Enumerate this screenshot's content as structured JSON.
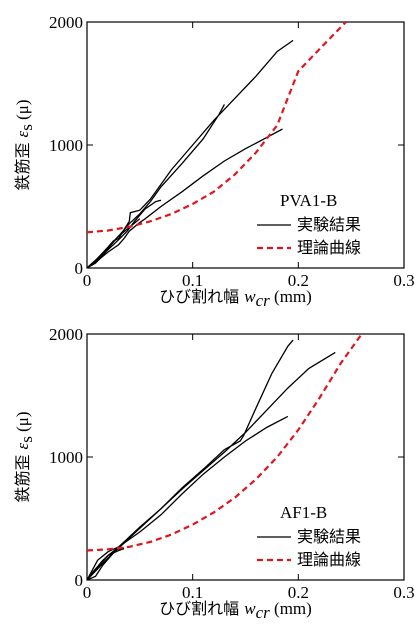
{
  "chart_data": [
    {
      "type": "line",
      "title": "PVA1-B",
      "xlabel": {
        "jp": "ひび割れ幅 ",
        "var": "w",
        "sub": "cr",
        "unit": " (mm)"
      },
      "ylabel": {
        "jp": "鉄筋歪 ",
        "var": "ε",
        "sub": "s",
        "unit": " (μ)"
      },
      "xlim": [
        0,
        0.3
      ],
      "ylim": [
        0,
        2000
      ],
      "xticks": [
        "0",
        "0.1",
        "0.2",
        "0.3"
      ],
      "yticks": [
        "0",
        "1000",
        "2000"
      ],
      "legend": {
        "placement": "bottom-right",
        "experimental": "実験結果",
        "theoretical": "理論曲線"
      },
      "colors": {
        "experimental": "#000000",
        "theoretical": "#e0161f"
      },
      "series": [
        {
          "role": "experimental",
          "values": [
            [
              0,
              0
            ],
            [
              0.005,
              40
            ],
            [
              0.01,
              70
            ],
            [
              0.018,
              150
            ],
            [
              0.025,
              220
            ],
            [
              0.03,
              240
            ],
            [
              0.035,
              310
            ],
            [
              0.04,
              380
            ],
            [
              0.041,
              450
            ],
            [
              0.05,
              470
            ],
            [
              0.06,
              560
            ],
            [
              0.08,
              800
            ],
            [
              0.1,
              1000
            ],
            [
              0.12,
              1200
            ],
            [
              0.14,
              1380
            ],
            [
              0.16,
              1560
            ],
            [
              0.18,
              1760
            ],
            [
              0.195,
              1850
            ]
          ]
        },
        {
          "role": "experimental",
          "values": [
            [
              0,
              0
            ],
            [
              0.01,
              80
            ],
            [
              0.02,
              170
            ],
            [
              0.03,
              260
            ],
            [
              0.04,
              360
            ],
            [
              0.05,
              440
            ],
            [
              0.06,
              540
            ],
            [
              0.07,
              660
            ],
            [
              0.09,
              850
            ],
            [
              0.11,
              1050
            ],
            [
              0.125,
              1250
            ],
            [
              0.13,
              1330
            ]
          ]
        },
        {
          "role": "experimental",
          "values": [
            [
              0,
              0
            ],
            [
              0.01,
              60
            ],
            [
              0.02,
              130
            ],
            [
              0.03,
              190
            ],
            [
              0.035,
              240
            ],
            [
              0.04,
              300
            ],
            [
              0.05,
              370
            ],
            [
              0.055,
              400
            ],
            [
              0.07,
              500
            ],
            [
              0.09,
              620
            ],
            [
              0.11,
              750
            ],
            [
              0.13,
              870
            ],
            [
              0.15,
              970
            ],
            [
              0.17,
              1060
            ],
            [
              0.185,
              1130
            ]
          ]
        },
        {
          "role": "experimental",
          "values": [
            [
              0,
              0
            ],
            [
              0.01,
              70
            ],
            [
              0.02,
              150
            ],
            [
              0.03,
              230
            ],
            [
              0.038,
              300
            ],
            [
              0.045,
              380
            ],
            [
              0.055,
              480
            ],
            [
              0.065,
              540
            ],
            [
              0.07,
              550
            ]
          ]
        },
        {
          "role": "experimental",
          "values": [
            [
              0,
              0
            ],
            [
              0.008,
              40
            ],
            [
              0.015,
              100
            ],
            [
              0.022,
              180
            ],
            [
              0.03,
              260
            ],
            [
              0.04,
              330
            ],
            [
              0.05,
              400
            ]
          ]
        },
        {
          "role": "theoretical",
          "values": [
            [
              0,
              290
            ],
            [
              0.02,
              305
            ],
            [
              0.04,
              335
            ],
            [
              0.06,
              380
            ],
            [
              0.08,
              440
            ],
            [
              0.1,
              520
            ],
            [
              0.12,
              620
            ],
            [
              0.14,
              760
            ],
            [
              0.16,
              940
            ],
            [
              0.18,
              1160
            ],
            [
              0.2,
              1600
            ],
            [
              0.22,
              1780
            ],
            [
              0.245,
              2000
            ]
          ]
        }
      ]
    },
    {
      "type": "line",
      "title": "AF1-B",
      "xlabel": {
        "jp": "ひび割れ幅 ",
        "var": "w",
        "sub": "cr",
        "unit": " (mm)"
      },
      "ylabel": {
        "jp": "鉄筋歪 ",
        "var": "ε",
        "sub": "s",
        "unit": " (μ)"
      },
      "xlim": [
        0,
        0.3
      ],
      "ylim": [
        0,
        2000
      ],
      "xticks": [
        "0",
        "0.1",
        "0.2",
        "0.3"
      ],
      "yticks": [
        "0",
        "1000",
        "2000"
      ],
      "legend": {
        "placement": "bottom-right",
        "experimental": "実験結果",
        "theoretical": "理論曲線"
      },
      "colors": {
        "experimental": "#000000",
        "theoretical": "#e0161f"
      },
      "series": [
        {
          "role": "experimental",
          "values": [
            [
              0,
              0
            ],
            [
              0.005,
              80
            ],
            [
              0.01,
              160
            ],
            [
              0.02,
              230
            ],
            [
              0.03,
              270
            ],
            [
              0.04,
              350
            ],
            [
              0.05,
              430
            ],
            [
              0.07,
              580
            ],
            [
              0.09,
              750
            ],
            [
              0.11,
              900
            ],
            [
              0.13,
              1060
            ],
            [
              0.145,
              1130
            ],
            [
              0.148,
              1170
            ],
            [
              0.16,
              1400
            ],
            [
              0.175,
              1680
            ],
            [
              0.19,
              1900
            ],
            [
              0.195,
              1950
            ]
          ]
        },
        {
          "role": "experimental",
          "values": [
            [
              0,
              0
            ],
            [
              0.01,
              90
            ],
            [
              0.02,
              180
            ],
            [
              0.03,
              260
            ],
            [
              0.05,
              420
            ],
            [
              0.07,
              580
            ],
            [
              0.09,
              740
            ],
            [
              0.11,
              890
            ],
            [
              0.13,
              1040
            ],
            [
              0.15,
              1200
            ],
            [
              0.17,
              1380
            ],
            [
              0.19,
              1560
            ],
            [
              0.21,
              1720
            ],
            [
              0.235,
              1850
            ]
          ]
        },
        {
          "role": "experimental",
          "values": [
            [
              0,
              0
            ],
            [
              0.01,
              100
            ],
            [
              0.02,
              200
            ],
            [
              0.035,
              300
            ],
            [
              0.05,
              390
            ],
            [
              0.07,
              530
            ],
            [
              0.09,
              700
            ],
            [
              0.11,
              860
            ],
            [
              0.13,
              1000
            ],
            [
              0.15,
              1130
            ],
            [
              0.17,
              1240
            ],
            [
              0.19,
              1330
            ]
          ]
        },
        {
          "role": "experimental",
          "values": [
            [
              0,
              0
            ],
            [
              0.005,
              60
            ],
            [
              0.01,
              110
            ],
            [
              0.015,
              160
            ],
            [
              0.02,
              200
            ],
            [
              0.025,
              220
            ],
            [
              0.03,
              240
            ],
            [
              0.035,
              255
            ]
          ]
        },
        {
          "role": "experimental",
          "values": [
            [
              0,
              0
            ],
            [
              0.008,
              30
            ],
            [
              0.015,
              120
            ],
            [
              0.02,
              170
            ],
            [
              0.028,
              250
            ],
            [
              0.035,
              260
            ]
          ]
        },
        {
          "role": "theoretical",
          "values": [
            [
              0,
              240
            ],
            [
              0.02,
              250
            ],
            [
              0.04,
              270
            ],
            [
              0.06,
              310
            ],
            [
              0.08,
              370
            ],
            [
              0.1,
              450
            ],
            [
              0.12,
              550
            ],
            [
              0.14,
              670
            ],
            [
              0.16,
              820
            ],
            [
              0.18,
              1000
            ],
            [
              0.2,
              1220
            ],
            [
              0.22,
              1480
            ],
            [
              0.24,
              1760
            ],
            [
              0.26,
              2000
            ]
          ]
        }
      ]
    }
  ]
}
